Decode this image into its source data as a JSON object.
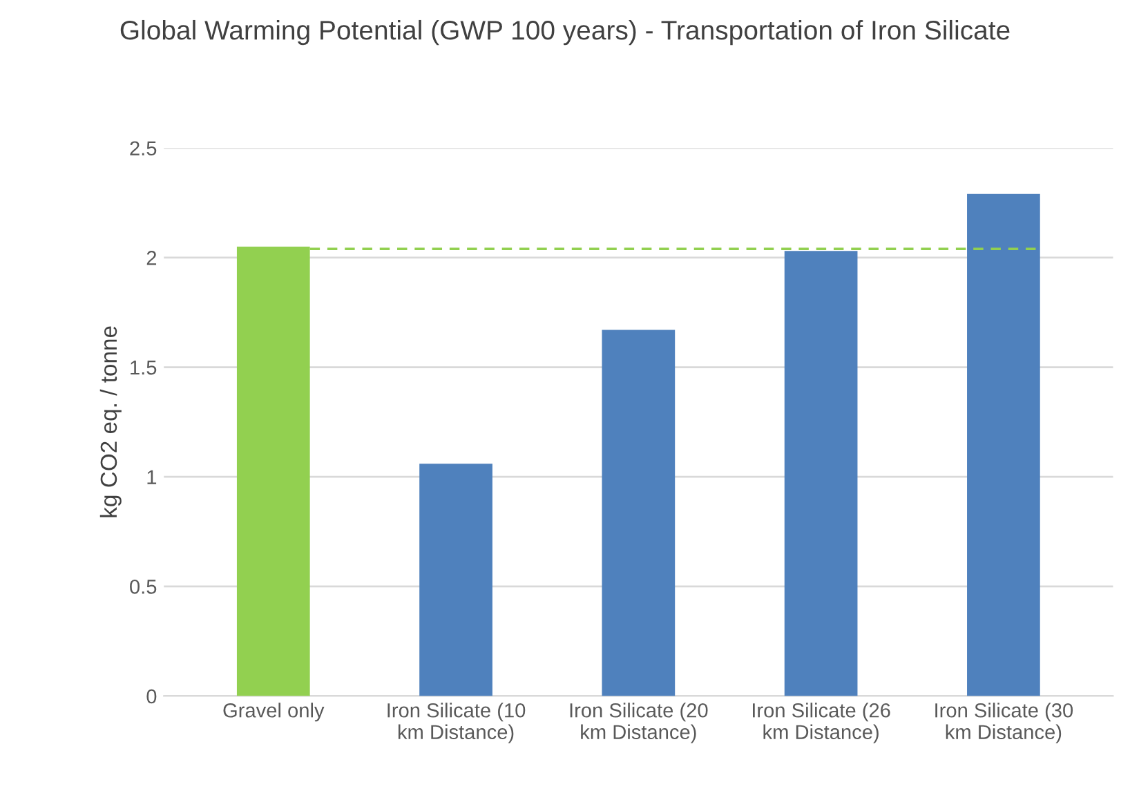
{
  "chart_data": {
    "type": "bar",
    "title": "Global Warming Potential (GWP 100 years) - Transportation of Iron Silicate",
    "ylabel": "kg CO2 eq. / tonne",
    "categories": [
      "Gravel only",
      "Iron Silicate (10 km Distance)",
      "Iron Silicate (20 km Distance)",
      "Iron Silicate (26 km Distance)",
      "Iron Silicate (30 km Distance)"
    ],
    "values": [
      2.05,
      1.06,
      1.67,
      2.03,
      2.29
    ],
    "colors": [
      "#92d050",
      "#4f81bd",
      "#4f81bd",
      "#4f81bd",
      "#4f81bd"
    ],
    "ylim": [
      0,
      2.5
    ],
    "yticks": [
      0,
      0.5,
      1,
      1.5,
      2,
      2.5
    ],
    "grid": "y",
    "legend": false,
    "ref_lines": [
      {
        "axis": "y",
        "value": 2.04,
        "color": "#92d050",
        "line_style": "dashed"
      }
    ]
  }
}
